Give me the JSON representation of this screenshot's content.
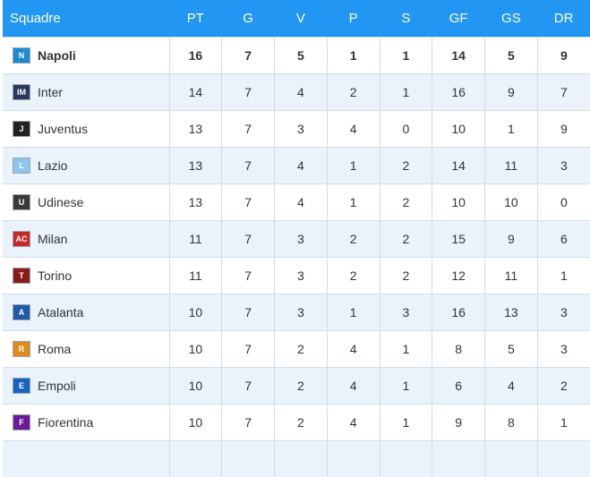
{
  "header": {
    "team": "Squadre",
    "cols": [
      "PT",
      "G",
      "V",
      "P",
      "S",
      "GF",
      "GS",
      "DR"
    ]
  },
  "teams": [
    {
      "name": "Napoli",
      "crest_icon": "napoli-crest-icon",
      "crest_color": "#1e88d0",
      "crest_glyph": "N",
      "stats": [
        "16",
        "7",
        "5",
        "1",
        "1",
        "14",
        "5",
        "9"
      ],
      "bold": true
    },
    {
      "name": "Inter",
      "crest_icon": "inter-crest-icon",
      "crest_color": "#2a3a5e",
      "crest_glyph": "IM",
      "stats": [
        "14",
        "7",
        "4",
        "2",
        "1",
        "16",
        "9",
        "7"
      ]
    },
    {
      "name": "Juventus",
      "crest_icon": "juventus-crest-icon",
      "crest_color": "#222222",
      "crest_glyph": "J",
      "stats": [
        "13",
        "7",
        "3",
        "4",
        "0",
        "10",
        "1",
        "9"
      ]
    },
    {
      "name": "Lazio",
      "crest_icon": "lazio-crest-icon",
      "crest_color": "#8cc6ea",
      "crest_glyph": "L",
      "stats": [
        "13",
        "7",
        "4",
        "1",
        "2",
        "14",
        "11",
        "3"
      ]
    },
    {
      "name": "Udinese",
      "crest_icon": "udinese-crest-icon",
      "crest_color": "#3a3a3a",
      "crest_glyph": "U",
      "stats": [
        "13",
        "7",
        "4",
        "1",
        "2",
        "10",
        "10",
        "0"
      ]
    },
    {
      "name": "Milan",
      "crest_icon": "milan-crest-icon",
      "crest_color": "#c62828",
      "crest_glyph": "AC",
      "stats": [
        "11",
        "7",
        "3",
        "2",
        "2",
        "15",
        "9",
        "6"
      ]
    },
    {
      "name": "Torino",
      "crest_icon": "torino-crest-icon",
      "crest_color": "#8b1a1a",
      "crest_glyph": "T",
      "stats": [
        "11",
        "7",
        "3",
        "2",
        "2",
        "12",
        "11",
        "1"
      ]
    },
    {
      "name": "Atalanta",
      "crest_icon": "atalanta-crest-icon",
      "crest_color": "#1e5aa8",
      "crest_glyph": "A",
      "stats": [
        "10",
        "7",
        "3",
        "1",
        "3",
        "16",
        "13",
        "3"
      ]
    },
    {
      "name": "Roma",
      "crest_icon": "roma-crest-icon",
      "crest_color": "#e08a1e",
      "crest_glyph": "R",
      "stats": [
        "10",
        "7",
        "2",
        "4",
        "1",
        "8",
        "5",
        "3"
      ]
    },
    {
      "name": "Empoli",
      "crest_icon": "empoli-crest-icon",
      "crest_color": "#1565c0",
      "crest_glyph": "E",
      "stats": [
        "10",
        "7",
        "2",
        "4",
        "1",
        "6",
        "4",
        "2"
      ]
    },
    {
      "name": "Fiorentina",
      "crest_icon": "fiorentina-crest-icon",
      "crest_color": "#6a1b9a",
      "crest_glyph": "F",
      "stats": [
        "10",
        "7",
        "2",
        "4",
        "1",
        "9",
        "8",
        "1"
      ]
    },
    {
      "name": "",
      "crest_icon": "",
      "crest_color": "#ffffff",
      "crest_glyph": "",
      "stats": [
        "",
        "",
        "",
        "",
        "",
        "",
        "",
        ""
      ]
    }
  ]
}
